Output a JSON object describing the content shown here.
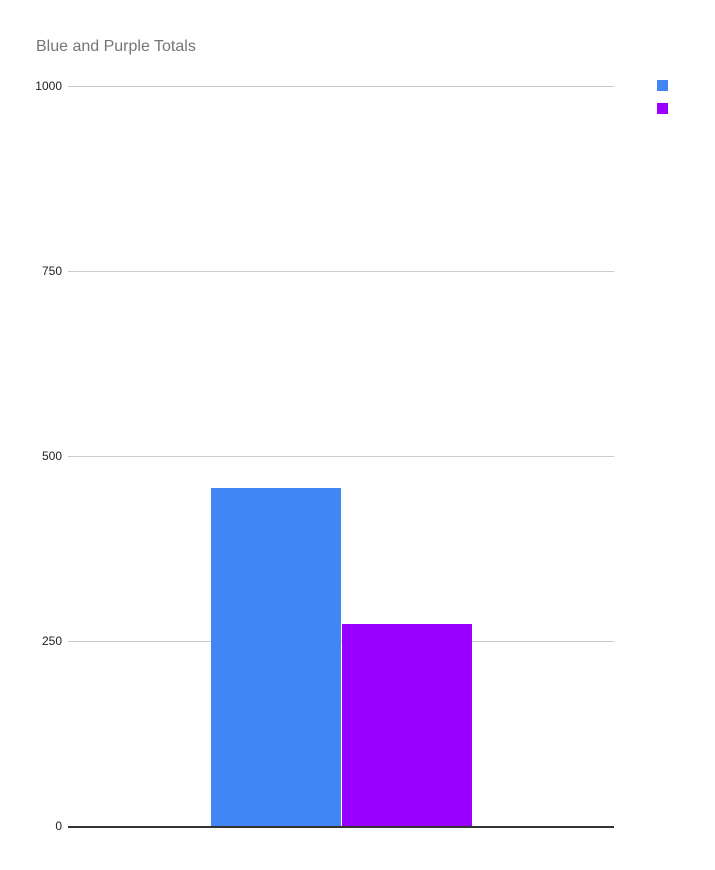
{
  "chart_data": {
    "type": "bar",
    "title": "Blue and Purple Totals",
    "categories": [
      ""
    ],
    "series": [
      {
        "id": "blue",
        "name": "",
        "color": "#4285f4",
        "values": [
          460
        ]
      },
      {
        "id": "purple",
        "name": "",
        "color": "#9900ff",
        "values": [
          275
        ]
      }
    ],
    "xlabel": "",
    "ylabel": "",
    "ylim": [
      0,
      1000
    ],
    "yticks": [
      0,
      250,
      500,
      750,
      1000
    ],
    "grid": true,
    "legend_position": "top-right",
    "legend_labels_visible": false,
    "colors": {
      "background": "#ffffff",
      "gridline": "#cccccc",
      "baseline": "#333333",
      "tick_label": "#212121",
      "title": "#757575"
    }
  }
}
